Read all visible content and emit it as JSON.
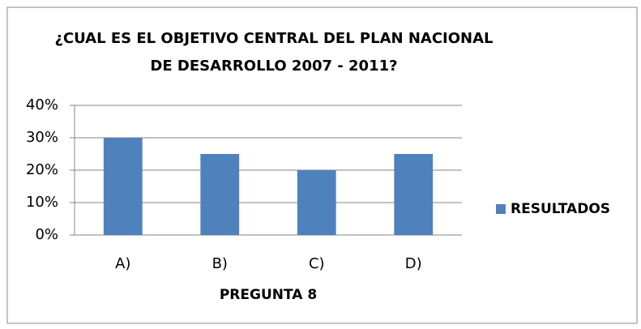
{
  "chart_data": {
    "type": "bar",
    "title": [
      "¿CUAL ES EL OBJETIVO CENTRAL DEL PLAN NACIONAL",
      "DE DESARROLLO 2007 - 2011?"
    ],
    "x_label": "PREGUNTA 8",
    "categories": [
      "A)",
      "B)",
      "C)",
      "D)"
    ],
    "series": [
      {
        "name": "RESULTADOS",
        "color": "#4f81bd",
        "values": [
          30,
          25,
          20,
          25
        ]
      }
    ],
    "ylim": [
      0,
      40
    ],
    "yticks": [
      {
        "value": 0,
        "label": "0%"
      },
      {
        "value": 10,
        "label": "10%"
      },
      {
        "value": 20,
        "label": "20%"
      },
      {
        "value": 30,
        "label": "30%"
      },
      {
        "value": 40,
        "label": "40%"
      }
    ],
    "grid": true,
    "legend": "right"
  }
}
